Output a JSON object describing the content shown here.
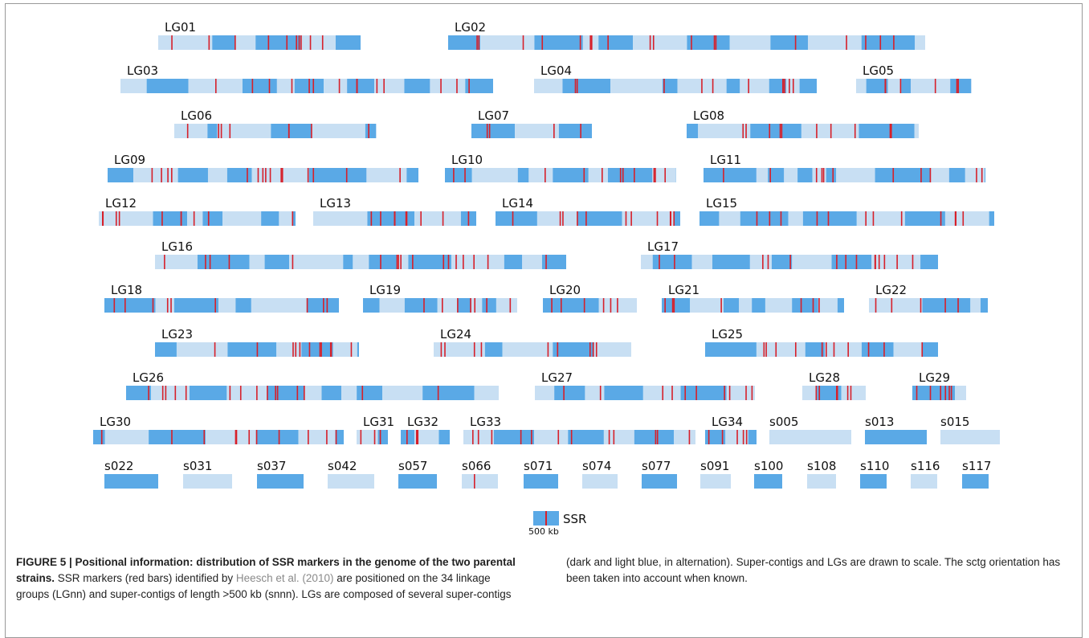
{
  "figure": {
    "groups": [
      "LG01",
      "LG02",
      "LG03",
      "LG04",
      "LG05",
      "LG06",
      "LG07",
      "LG08",
      "LG09",
      "LG10",
      "LG11",
      "LG12",
      "LG13",
      "LG14",
      "LG15",
      "LG16",
      "LG17",
      "LG18",
      "LG19",
      "LG20",
      "LG21",
      "LG22",
      "LG23",
      "LG24",
      "LG25",
      "LG26",
      "LG27",
      "LG28",
      "LG29",
      "LG30",
      "LG31",
      "LG32",
      "LG33",
      "LG34",
      "s005",
      "s013",
      "s015",
      "s022",
      "s031",
      "s037",
      "s042",
      "s057",
      "s066",
      "s071",
      "s074",
      "s077",
      "s091",
      "s100",
      "s108",
      "s110",
      "s116",
      "s117"
    ],
    "legend": {
      "label": "SSR",
      "scale": "500 kb"
    }
  },
  "caption": {
    "title": "FIGURE 5 | Positional information: distribution of SSR markers in the genome of the two parental strains.",
    "text1": "SSR markers (red bars) identified by",
    "link": "Heesch et al. (2010)",
    "text2": "are positioned on the 34 linkage groups (LGnn) and super-contigs of length >500 kb (snnn). LGs are composed of several super-contigs (dark and light blue, in alternation). Super-contigs and LGs are drawn to scale. The sctg orientation has been taken into account when known."
  }
}
